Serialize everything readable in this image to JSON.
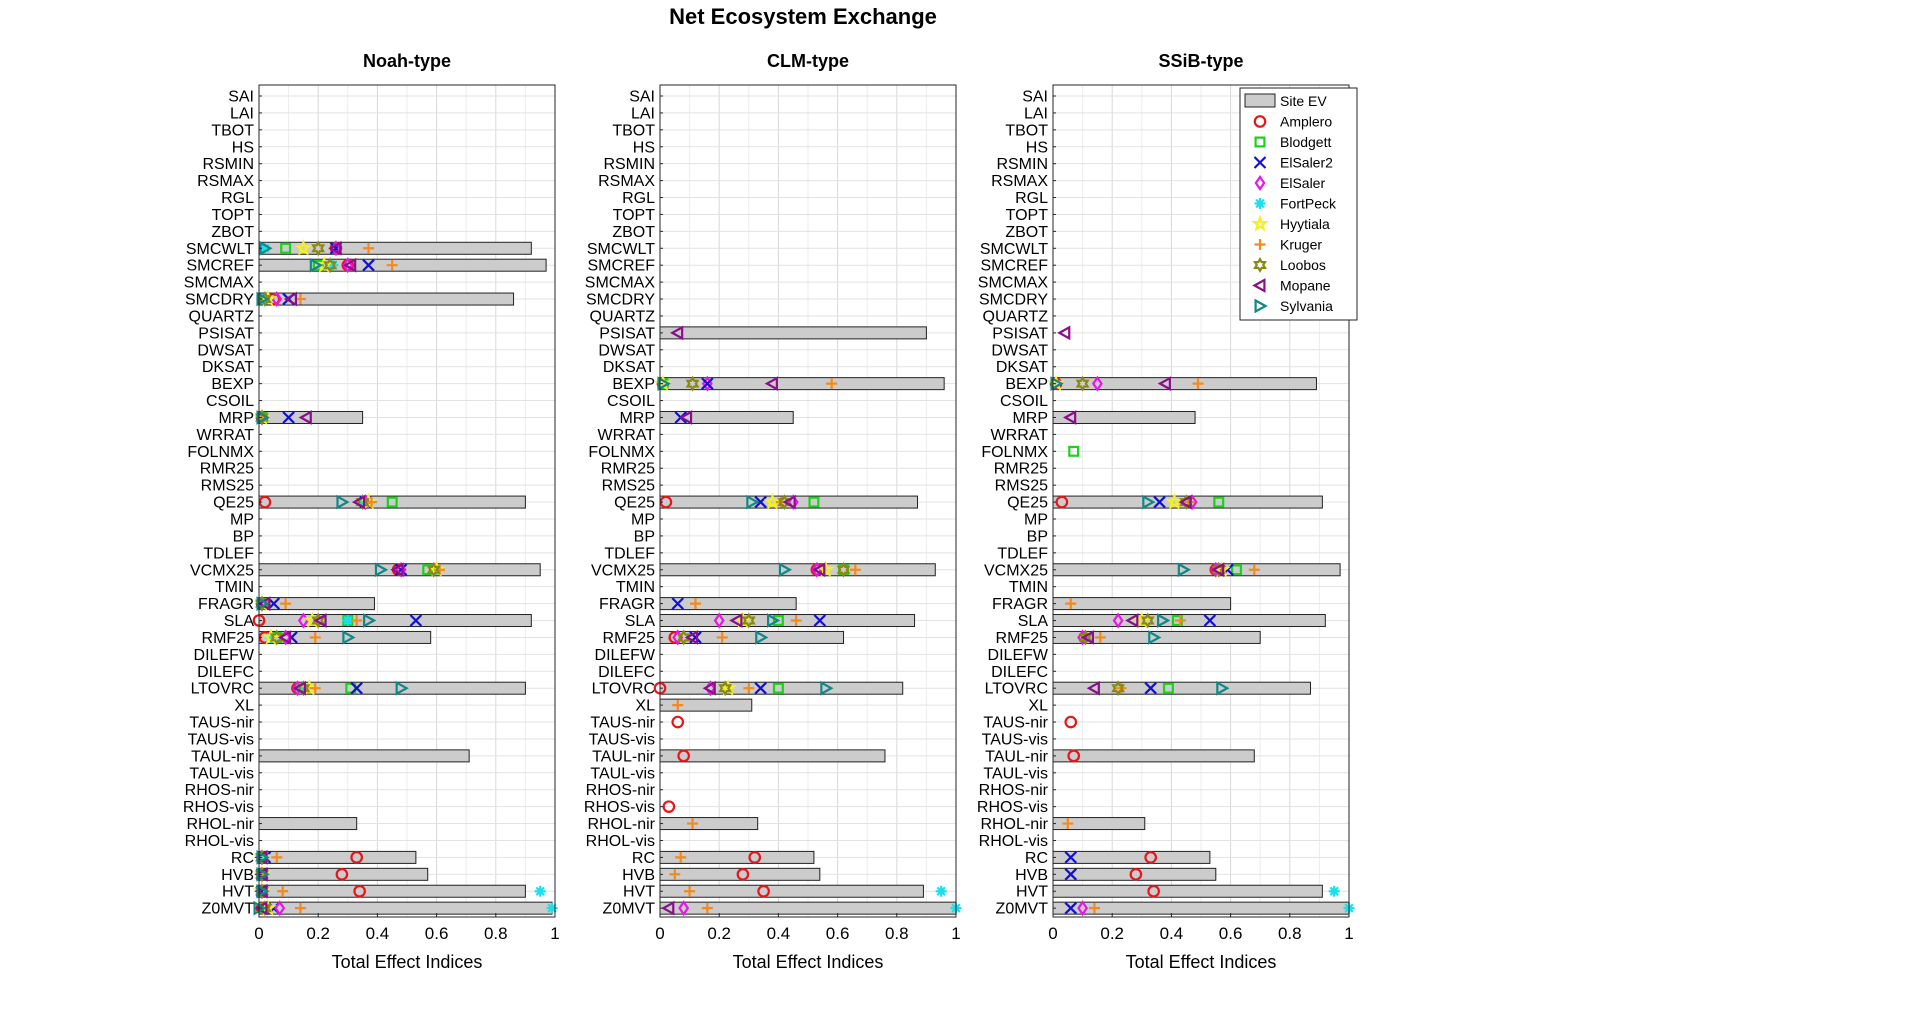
{
  "figure": {
    "title": "Net Ecosystem Exchange"
  },
  "chart_data": {
    "type": "bar",
    "parameters": [
      "SAI",
      "LAI",
      "TBOT",
      "HS",
      "RSMIN",
      "RSMAX",
      "RGL",
      "TOPT",
      "ZBOT",
      "SMCWLT",
      "SMCREF",
      "SMCMAX",
      "SMCDRY",
      "QUARTZ",
      "PSISAT",
      "DWSAT",
      "DKSAT",
      "BEXP",
      "CSOIL",
      "MRP",
      "WRRAT",
      "FOLNMX",
      "RMR25",
      "RMS25",
      "QE25",
      "MP",
      "BP",
      "TDLEF",
      "VCMX25",
      "TMIN",
      "FRAGR",
      "SLA",
      "RMF25",
      "DILEFW",
      "DILEFC",
      "LTOVRC",
      "XL",
      "TAUS-nir",
      "TAUS-vis",
      "TAUL-nir",
      "TAUL-vis",
      "RHOS-nir",
      "RHOS-vis",
      "RHOL-nir",
      "RHOL-vis",
      "RC",
      "HVB",
      "HVT",
      "Z0MVT"
    ],
    "xlabel": "Total Effect Indices",
    "xlim": [
      0,
      1
    ],
    "xticks": [
      "0",
      "0.2",
      "0.4",
      "0.6",
      "0.8",
      "1"
    ],
    "grid": true,
    "legend": {
      "placement": "top-right of SSiB-type panel",
      "bar_label": "Site EV",
      "sites": [
        {
          "name": "Amplero",
          "marker": "circle",
          "color": "#e8151b"
        },
        {
          "name": "Blodgett",
          "marker": "square",
          "color": "#1bd21b"
        },
        {
          "name": "ElSaler2",
          "marker": "x",
          "color": "#1010d8"
        },
        {
          "name": "ElSaler",
          "marker": "diamond",
          "color": "#e814e8"
        },
        {
          "name": "FortPeck",
          "marker": "star",
          "color": "#19e0ec"
        },
        {
          "name": "Hyytiala",
          "marker": "pentagram",
          "color": "#f5f020"
        },
        {
          "name": "Kruger",
          "marker": "plus",
          "color": "#f28a1f"
        },
        {
          "name": "Loobos",
          "marker": "hexagram",
          "color": "#8a8a10"
        },
        {
          "name": "Mopane",
          "marker": "triangle-left",
          "color": "#8a0f8a"
        },
        {
          "name": "Sylvania",
          "marker": "triangle-right",
          "color": "#118888"
        }
      ]
    },
    "panels": [
      {
        "title": "Noah-type",
        "bars": {
          "SMCWLT": 0.92,
          "SMCREF": 0.97,
          "SMCDRY": 0.86,
          "MRP": 0.35,
          "QE25": 0.9,
          "VCMX25": 0.95,
          "FRAGR": 0.39,
          "SLA": 0.92,
          "RMF25": 0.58,
          "LTOVRC": 0.9,
          "TAUL-nir": 0.71,
          "RHOL-nir": 0.33,
          "RC": 0.53,
          "HVB": 0.57,
          "HVT": 0.9,
          "Z0MVT": 0.99
        },
        "points": {
          "SMCWLT": {
            "Amplero": 0.26,
            "Blodgett": 0.09,
            "ElSaler2": 0.26,
            "ElSaler": 0.26,
            "FortPeck": 0.02,
            "Hyytiala": 0.15,
            "Kruger": 0.37,
            "Loobos": 0.2,
            "Mopane": 0.26,
            "Sylvania": 0.02
          },
          "SMCREF": {
            "Amplero": 0.3,
            "Blodgett": 0.2,
            "ElSaler2": 0.37,
            "ElSaler": 0.3,
            "FortPeck": 0.25,
            "Hyytiala": 0.22,
            "Kruger": 0.45,
            "Loobos": 0.24,
            "Mopane": 0.31,
            "Sylvania": 0.19
          },
          "SMCDRY": {
            "Amplero": 0.05,
            "Blodgett": 0.01,
            "ElSaler2": 0.1,
            "ElSaler": 0.06,
            "FortPeck": 0.01,
            "Hyytiala": 0.03,
            "Kruger": 0.14,
            "Loobos": 0.02,
            "Mopane": 0.11,
            "Sylvania": 0.01
          },
          "MRP": {
            "Amplero": 0.01,
            "Blodgett": 0.01,
            "ElSaler2": 0.1,
            "ElSaler": 0.01,
            "FortPeck": 0.01,
            "Hyytiala": 0.01,
            "Kruger": 0.01,
            "Loobos": 0.01,
            "Mopane": 0.16,
            "Sylvania": 0.01
          },
          "QE25": {
            "Amplero": 0.02,
            "Blodgett": 0.45,
            "ElSaler2": 0.36,
            "ElSaler": 0.36,
            "FortPeck": 0.35,
            "Hyytiala": 0.37,
            "Kruger": 0.38,
            "Loobos": 0.35,
            "Mopane": 0.34,
            "Sylvania": 0.28
          },
          "VCMX25": {
            "Amplero": 0.47,
            "Blodgett": 0.57,
            "ElSaler2": 0.48,
            "ElSaler": 0.48,
            "FortPeck": 0.6,
            "Hyytiala": 0.6,
            "Kruger": 0.61,
            "Loobos": 0.59,
            "Mopane": 0.47,
            "Sylvania": 0.41
          },
          "FRAGR": {
            "Amplero": 0.01,
            "Blodgett": 0.02,
            "ElSaler2": 0.05,
            "ElSaler": 0.01,
            "FortPeck": 0.01,
            "Hyytiala": 0.01,
            "Kruger": 0.09,
            "Loobos": 0.01,
            "Mopane": 0.02,
            "Sylvania": 0.01
          },
          "SLA": {
            "Amplero": 0.0,
            "Blodgett": 0.3,
            "ElSaler2": 0.53,
            "ElSaler": 0.15,
            "FortPeck": 0.3,
            "Hyytiala": 0.18,
            "Kruger": 0.33,
            "Loobos": 0.2,
            "Mopane": 0.21,
            "Sylvania": 0.37
          },
          "RMF25": {
            "Amplero": 0.02,
            "Blodgett": 0.06,
            "ElSaler2": 0.11,
            "ElSaler": 0.09,
            "FortPeck": 0.04,
            "Hyytiala": 0.04,
            "Kruger": 0.19,
            "Loobos": 0.06,
            "Mopane": 0.09,
            "Sylvania": 0.3
          },
          "LTOVRC": {
            "Amplero": 0.13,
            "Blodgett": 0.31,
            "ElSaler2": 0.33,
            "ElSaler": 0.13,
            "FortPeck": 0.14,
            "Hyytiala": 0.17,
            "Kruger": 0.19,
            "Loobos": 0.15,
            "Mopane": 0.14,
            "Sylvania": 0.48
          },
          "RC": {
            "Amplero": 0.33,
            "Blodgett": 0.01,
            "ElSaler2": 0.02,
            "ElSaler": 0.01,
            "FortPeck": 0.01,
            "Hyytiala": 0.01,
            "Kruger": 0.06,
            "Loobos": 0.01,
            "Mopane": 0.01,
            "Sylvania": 0.01
          },
          "HVB": {
            "Amplero": 0.28,
            "Blodgett": 0.01,
            "ElSaler2": 0.01,
            "ElSaler": 0.01,
            "FortPeck": 0.01,
            "Hyytiala": 0.01,
            "Kruger": 0.01,
            "Loobos": 0.01,
            "Mopane": 0.01,
            "Sylvania": 0.01
          },
          "HVT": {
            "Amplero": 0.34,
            "Blodgett": 0.01,
            "ElSaler2": 0.01,
            "ElSaler": 0.01,
            "FortPeck": 0.95,
            "Hyytiala": 0.01,
            "Kruger": 0.08,
            "Loobos": 0.01,
            "Mopane": 0.01,
            "Sylvania": 0.01
          },
          "Z0MVT": {
            "Amplero": 0.01,
            "Blodgett": 0.02,
            "ElSaler2": 0.05,
            "ElSaler": 0.07,
            "FortPeck": 0.99,
            "Hyytiala": 0.03,
            "Kruger": 0.14,
            "Loobos": 0.02,
            "Mopane": 0.01,
            "Sylvania": 0.0
          }
        }
      },
      {
        "title": "CLM-type",
        "bars": {
          "PSISAT": 0.9,
          "BEXP": 0.96,
          "MRP": 0.45,
          "QE25": 0.87,
          "VCMX25": 0.93,
          "FRAGR": 0.46,
          "SLA": 0.86,
          "RMF25": 0.62,
          "LTOVRC": 0.82,
          "XL": 0.31,
          "TAUL-nir": 0.76,
          "RHOL-nir": 0.33,
          "RC": 0.52,
          "HVB": 0.54,
          "HVT": 0.89,
          "Z0MVT": 1.0
        },
        "points": {
          "PSISAT": {
            "Mopane": 0.06
          },
          "BEXP": {
            "Amplero": 0.01,
            "Blodgett": 0.01,
            "ElSaler": 0.16,
            "ElSaler2": 0.16,
            "Hyytiala": 0.01,
            "Kruger": 0.58,
            "Loobos": 0.11,
            "Mopane": 0.38,
            "Sylvania": 0.01
          },
          "MRP": {
            "ElSaler2": 0.07,
            "Mopane": 0.09
          },
          "QE25": {
            "Amplero": 0.02,
            "Blodgett": 0.52,
            "ElSaler2": 0.34,
            "ElSaler": 0.45,
            "Hyytiala": 0.38,
            "Kruger": 0.41,
            "Loobos": 0.42,
            "Mopane": 0.44,
            "Sylvania": 0.31
          },
          "VCMX25": {
            "Amplero": 0.53,
            "Blodgett": 0.62,
            "ElSaler": 0.53,
            "Hyytiala": 0.56,
            "Kruger": 0.66,
            "Loobos": 0.62,
            "Mopane": 0.54,
            "Sylvania": 0.42
          },
          "FRAGR": {
            "ElSaler2": 0.06,
            "Kruger": 0.12
          },
          "SLA": {
            "Blodgett": 0.4,
            "ElSaler2": 0.54,
            "ElSaler": 0.2,
            "Hyytiala": 0.28,
            "Kruger": 0.46,
            "Loobos": 0.3,
            "Mopane": 0.26,
            "Sylvania": 0.38
          },
          "RMF25": {
            "Amplero": 0.05,
            "ElSaler2": 0.12,
            "ElSaler": 0.06,
            "Kruger": 0.21,
            "Loobos": 0.08,
            "Mopane": 0.11,
            "Sylvania": 0.34
          },
          "LTOVRC": {
            "Amplero": 0.0,
            "Blodgett": 0.4,
            "ElSaler2": 0.34,
            "ElSaler": 0.17,
            "Hyytiala": 0.23,
            "Kruger": 0.3,
            "Loobos": 0.22,
            "Mopane": 0.17,
            "Sylvania": 0.56
          },
          "XL": {
            "Kruger": 0.06
          },
          "TAUS-nir": {
            "Amplero": 0.06
          },
          "TAUL-nir": {
            "Amplero": 0.08
          },
          "RHOS-vis": {
            "Amplero": 0.03
          },
          "RHOL-nir": {
            "Kruger": 0.11
          },
          "RC": {
            "Amplero": 0.32,
            "Kruger": 0.07
          },
          "HVB": {
            "Amplero": 0.28,
            "Kruger": 0.05
          },
          "HVT": {
            "Amplero": 0.35,
            "FortPeck": 0.95,
            "Kruger": 0.1
          },
          "Z0MVT": {
            "ElSaler": 0.08,
            "FortPeck": 1.0,
            "Kruger": 0.16,
            "Mopane": 0.03
          }
        }
      },
      {
        "title": "SSiB-type",
        "bars": {
          "BEXP": 0.89,
          "MRP": 0.48,
          "QE25": 0.91,
          "VCMX25": 0.97,
          "FRAGR": 0.6,
          "SLA": 0.92,
          "RMF25": 0.7,
          "LTOVRC": 0.87,
          "TAUL-nir": 0.68,
          "RHOL-nir": 0.31,
          "RC": 0.53,
          "HVB": 0.55,
          "HVT": 0.91,
          "Z0MVT": 1.0
        },
        "points": {
          "PSISAT": {
            "Mopane": 0.04
          },
          "BEXP": {
            "Amplero": 0.01,
            "ElSaler": 0.15,
            "Hyytiala": 0.01,
            "Kruger": 0.49,
            "Loobos": 0.1,
            "Mopane": 0.38,
            "Sylvania": 0.01
          },
          "MRP": {
            "Mopane": 0.06
          },
          "QE25": {
            "Amplero": 0.03,
            "Blodgett": 0.56,
            "ElSaler2": 0.36,
            "ElSaler": 0.47,
            "Hyytiala": 0.41,
            "Kruger": 0.46,
            "Loobos": 0.45,
            "Mopane": 0.45,
            "Sylvania": 0.32
          },
          "VCMX25": {
            "Amplero": 0.55,
            "Blodgett": 0.62,
            "ElSaler2": 0.59,
            "ElSaler": 0.55,
            "Hyytiala": 0.57,
            "Kruger": 0.68,
            "Loobos": 0.56,
            "Mopane": 0.56,
            "Sylvania": 0.44
          },
          "FRAGR": {
            "Kruger": 0.06
          },
          "SLA": {
            "Blodgett": 0.42,
            "ElSaler2": 0.53,
            "ElSaler": 0.22,
            "Hyytiala": 0.3,
            "Kruger": 0.43,
            "Loobos": 0.32,
            "Mopane": 0.27,
            "Sylvania": 0.37
          },
          "RMF25": {
            "ElSaler": 0.1,
            "Kruger": 0.16,
            "Loobos": 0.11,
            "Mopane": 0.12,
            "Sylvania": 0.34
          },
          "LTOVRC": {
            "Blodgett": 0.39,
            "ElSaler2": 0.33,
            "Kruger": 0.23,
            "Loobos": 0.22,
            "Mopane": 0.14,
            "Sylvania": 0.57
          },
          "FOLNMX": {
            "Blodgett": 0.07
          },
          "TAUS-nir": {
            "Amplero": 0.06
          },
          "TAUL-nir": {
            "Amplero": 0.07
          },
          "RHOL-nir": {
            "Kruger": 0.05
          },
          "RC": {
            "Amplero": 0.33,
            "ElSaler2": 0.06
          },
          "HVB": {
            "Amplero": 0.28,
            "ElSaler2": 0.06
          },
          "HVT": {
            "Amplero": 0.34,
            "FortPeck": 0.95
          },
          "Z0MVT": {
            "ElSaler": 0.1,
            "ElSaler2": 0.06,
            "FortPeck": 1.0,
            "Kruger": 0.14
          }
        }
      }
    ]
  }
}
